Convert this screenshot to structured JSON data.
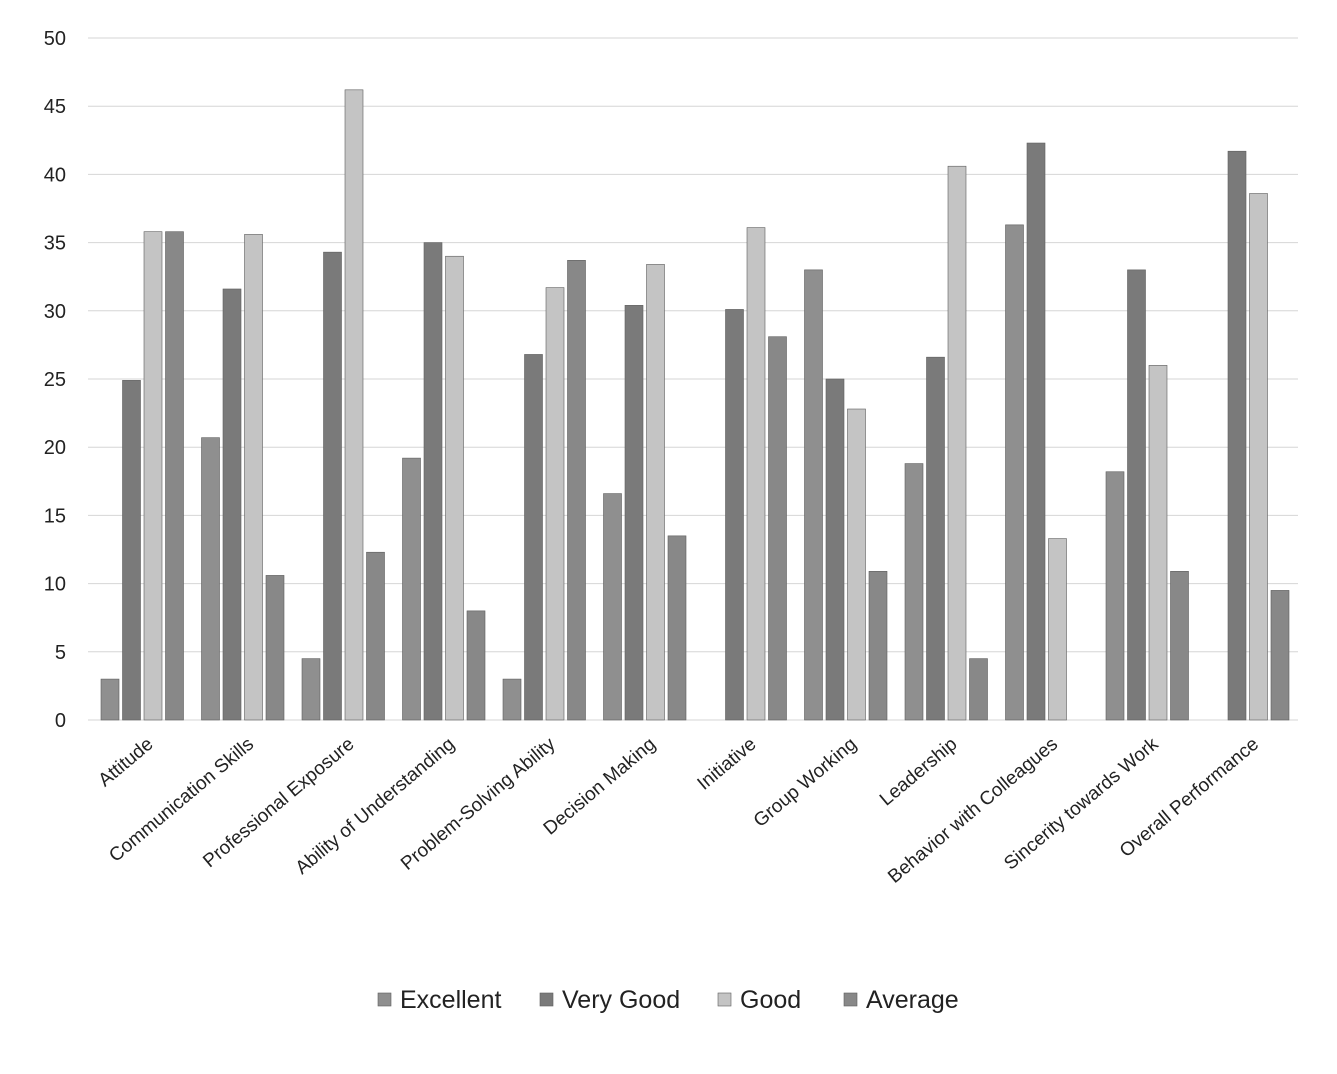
{
  "chart_data": {
    "type": "bar",
    "categories": [
      "Attitude",
      "Communication Skills",
      "Professional Exposure",
      "Ability of Understanding",
      "Problem-Solving Ability",
      "Decision Making",
      "Initiative",
      "Group Working",
      "Leadership",
      "Behavior with Colleagues",
      "Sincerity towards Work",
      "Overall Performance"
    ],
    "series": [
      {
        "name": "Excellent",
        "values": [
          3,
          20.7,
          4.5,
          19.2,
          3,
          16.6,
          0,
          33,
          18.8,
          36.3,
          18.2,
          0
        ],
        "color": "#8f8f8f"
      },
      {
        "name": "Very Good",
        "values": [
          24.9,
          31.6,
          34.3,
          35,
          26.8,
          30.4,
          30.1,
          25,
          26.6,
          42.3,
          33,
          41.7
        ],
        "color": "#7a7a7a"
      },
      {
        "name": "Good",
        "values": [
          35.8,
          35.6,
          46.2,
          34,
          31.7,
          33.4,
          36.1,
          22.8,
          40.6,
          13.3,
          26,
          38.6
        ],
        "color": "#c4c4c4"
      },
      {
        "name": "Average",
        "values": [
          35.8,
          10.6,
          12.3,
          8,
          33.7,
          13.5,
          28.1,
          10.9,
          4.5,
          0,
          10.9,
          9.5
        ],
        "color": "#888888"
      }
    ],
    "y_ticks": [
      "0",
      "5",
      "10",
      "15",
      "20",
      "25",
      "30",
      "35",
      "40",
      "45",
      "50"
    ],
    "ylim": [
      0,
      50
    ],
    "grid": true,
    "legend": "bottom-center"
  }
}
